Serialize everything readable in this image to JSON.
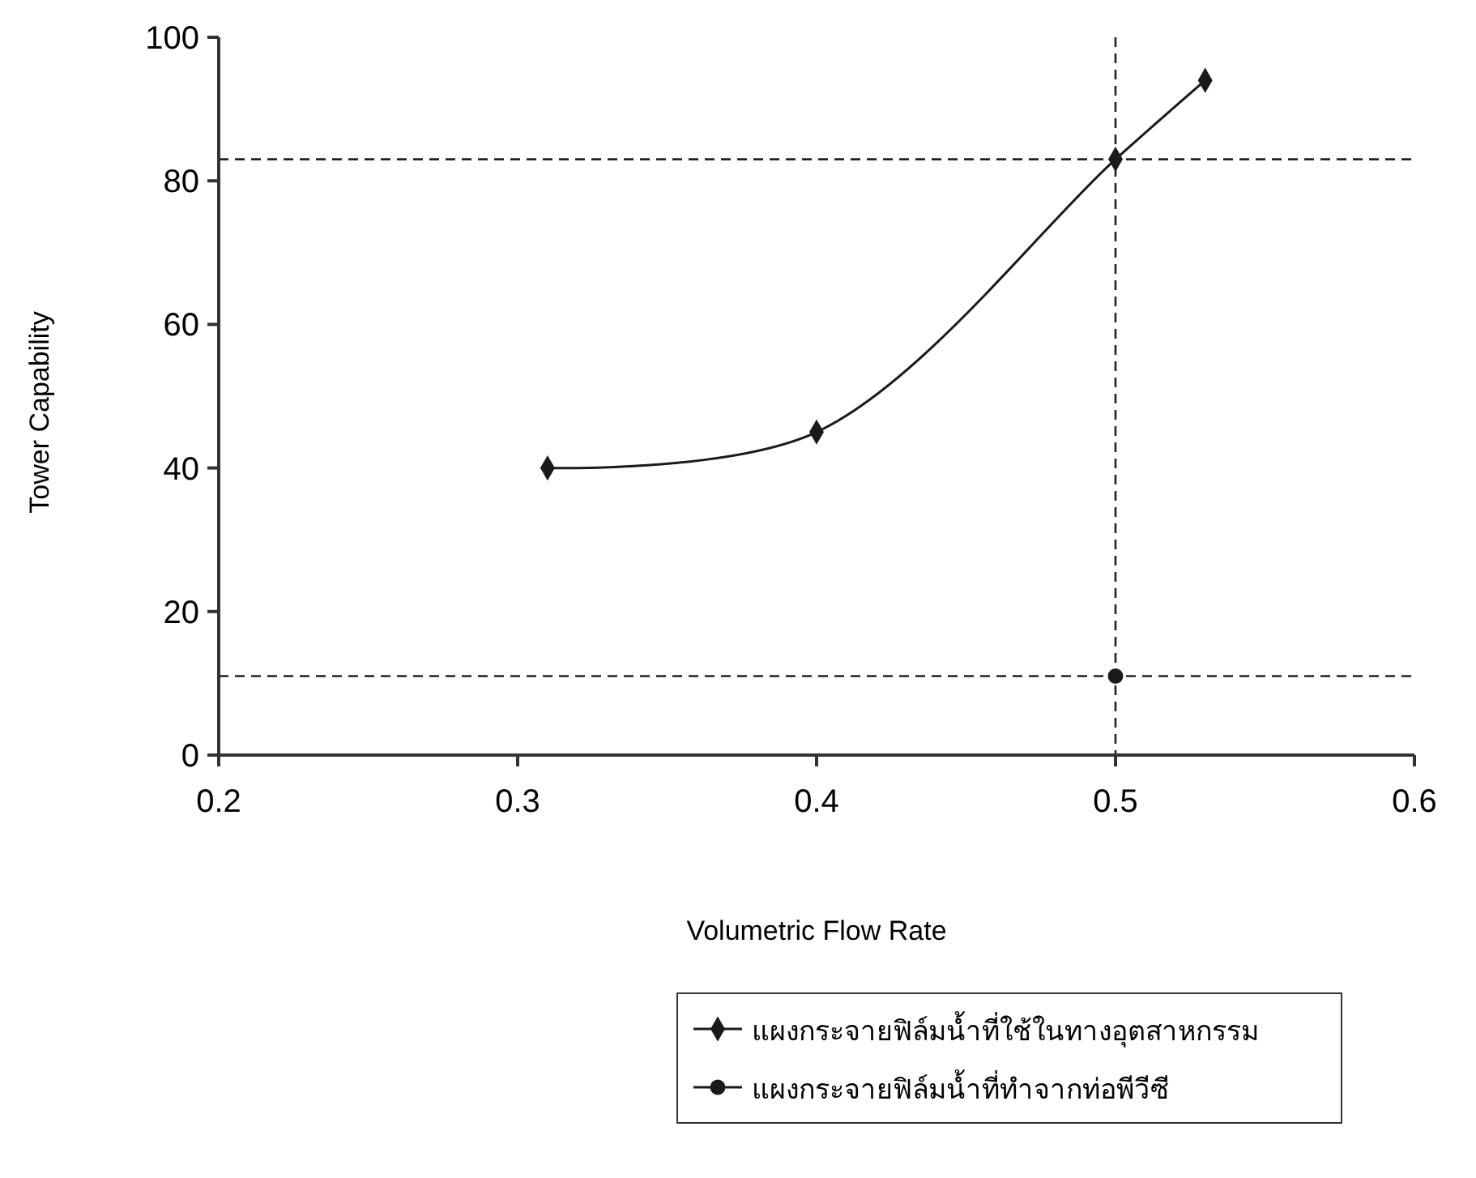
{
  "chart_data": {
    "type": "line",
    "xlabel": "Volumetric Flow Rate",
    "ylabel": "Tower Capability",
    "xlim": [
      0.2,
      0.6
    ],
    "xticks": [
      0.2,
      0.3,
      0.4,
      0.5,
      0.6
    ],
    "ylim": [
      0,
      100
    ],
    "yticks": [
      0,
      20,
      40,
      60,
      80,
      100
    ],
    "grid": false,
    "legend": "bottom",
    "line_style": "solid",
    "series": [
      {
        "name": "แผงกระจายฟิล์มน้ำที่ใช้ในทางอุตสาหกรรม",
        "color": "#1a1a1a",
        "marker": "diamond",
        "x": [
          0.31,
          0.4,
          0.5,
          0.53
        ],
        "values": [
          40,
          45,
          83,
          94
        ]
      },
      {
        "name": "แผงกระจายฟิล์มน้ำที่ทำจากท่อพีวีซี",
        "color": "#1a1a1a",
        "marker": "circle",
        "x": [
          0.5
        ],
        "values": [
          11
        ]
      }
    ],
    "ref_lines": [
      {
        "axis": "y",
        "value": 83,
        "line_style": "dashed"
      },
      {
        "axis": "x",
        "value": 0.5,
        "line_style": "dashed"
      },
      {
        "axis": "y",
        "value": 11,
        "line_style": "dashed"
      }
    ]
  }
}
